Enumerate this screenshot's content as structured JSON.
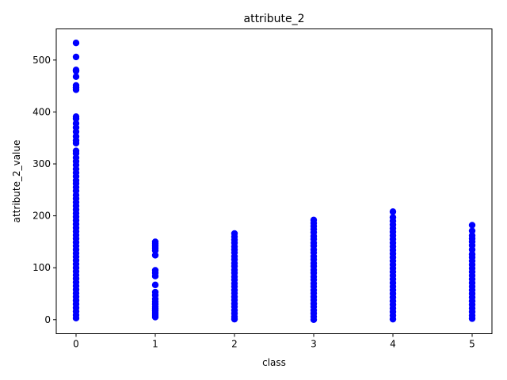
{
  "chart_data": {
    "type": "scatter",
    "title": "attribute_2",
    "xlabel": "class",
    "ylabel": "attribute_2_value",
    "xlim": [
      -0.25,
      5.25
    ],
    "ylim": [
      -27,
      560
    ],
    "xticks": [
      0,
      1,
      2,
      3,
      4,
      5
    ],
    "yticks": [
      0,
      100,
      200,
      300,
      400,
      500
    ],
    "grid": false,
    "legend": "none",
    "marker_color": "#0000ff",
    "series": [
      {
        "points": [
          {
            "x": 0,
            "y": 533
          },
          {
            "x": 0,
            "y": 506
          },
          {
            "x": 0,
            "y": 481
          },
          {
            "x": 0,
            "y": 479
          },
          {
            "x": 0,
            "y": 468
          },
          {
            "x": 0,
            "y": 451
          },
          {
            "x": 0,
            "y": 447
          },
          {
            "x": 0,
            "y": 443
          },
          {
            "x": 0,
            "y": 391
          },
          {
            "x": 0,
            "y": 387
          },
          {
            "x": 0,
            "y": 378
          },
          {
            "x": 0,
            "y": 370
          },
          {
            "x": 0,
            "y": 362
          },
          {
            "x": 0,
            "y": 353
          },
          {
            "x": 0,
            "y": 345
          },
          {
            "x": 0,
            "y": 340
          },
          {
            "x": 0,
            "y": 325
          },
          {
            "x": 0,
            "y": 320
          },
          {
            "x": 0,
            "y": 312
          },
          {
            "x": 0,
            "y": 305
          },
          {
            "x": 0,
            "y": 298
          },
          {
            "x": 0,
            "y": 290
          },
          {
            "x": 0,
            "y": 283
          },
          {
            "x": 0,
            "y": 276
          },
          {
            "x": 0,
            "y": 268
          },
          {
            "x": 0,
            "y": 262
          },
          {
            "x": 0,
            "y": 255
          },
          {
            "x": 0,
            "y": 248
          },
          {
            "x": 0,
            "y": 240
          },
          {
            "x": 0,
            "y": 233
          },
          {
            "x": 0,
            "y": 226
          },
          {
            "x": 0,
            "y": 219
          },
          {
            "x": 0,
            "y": 212
          },
          {
            "x": 0,
            "y": 205
          },
          {
            "x": 0,
            "y": 198
          },
          {
            "x": 0,
            "y": 191
          },
          {
            "x": 0,
            "y": 184
          },
          {
            "x": 0,
            "y": 177
          },
          {
            "x": 0,
            "y": 170
          },
          {
            "x": 0,
            "y": 163
          },
          {
            "x": 0,
            "y": 156
          },
          {
            "x": 0,
            "y": 149
          },
          {
            "x": 0,
            "y": 142
          },
          {
            "x": 0,
            "y": 135
          },
          {
            "x": 0,
            "y": 128
          },
          {
            "x": 0,
            "y": 121
          },
          {
            "x": 0,
            "y": 114
          },
          {
            "x": 0,
            "y": 107
          },
          {
            "x": 0,
            "y": 100
          },
          {
            "x": 0,
            "y": 93
          },
          {
            "x": 0,
            "y": 86
          },
          {
            "x": 0,
            "y": 79
          },
          {
            "x": 0,
            "y": 72
          },
          {
            "x": 0,
            "y": 65
          },
          {
            "x": 0,
            "y": 58
          },
          {
            "x": 0,
            "y": 51
          },
          {
            "x": 0,
            "y": 44
          },
          {
            "x": 0,
            "y": 37
          },
          {
            "x": 0,
            "y": 30
          },
          {
            "x": 0,
            "y": 23
          },
          {
            "x": 0,
            "y": 16
          },
          {
            "x": 0,
            "y": 9
          },
          {
            "x": 0,
            "y": 3
          },
          {
            "x": 1,
            "y": 150
          },
          {
            "x": 1,
            "y": 146
          },
          {
            "x": 1,
            "y": 142
          },
          {
            "x": 1,
            "y": 138
          },
          {
            "x": 1,
            "y": 133
          },
          {
            "x": 1,
            "y": 124
          },
          {
            "x": 1,
            "y": 95
          },
          {
            "x": 1,
            "y": 90
          },
          {
            "x": 1,
            "y": 84
          },
          {
            "x": 1,
            "y": 67
          },
          {
            "x": 1,
            "y": 53
          },
          {
            "x": 1,
            "y": 47
          },
          {
            "x": 1,
            "y": 40
          },
          {
            "x": 1,
            "y": 35
          },
          {
            "x": 1,
            "y": 30
          },
          {
            "x": 1,
            "y": 25
          },
          {
            "x": 1,
            "y": 21
          },
          {
            "x": 1,
            "y": 17
          },
          {
            "x": 1,
            "y": 13
          },
          {
            "x": 1,
            "y": 9
          },
          {
            "x": 1,
            "y": 5
          },
          {
            "x": 2,
            "y": 166
          },
          {
            "x": 2,
            "y": 160
          },
          {
            "x": 2,
            "y": 154
          },
          {
            "x": 2,
            "y": 148
          },
          {
            "x": 2,
            "y": 141
          },
          {
            "x": 2,
            "y": 135
          },
          {
            "x": 2,
            "y": 129
          },
          {
            "x": 2,
            "y": 122
          },
          {
            "x": 2,
            "y": 116
          },
          {
            "x": 2,
            "y": 109
          },
          {
            "x": 2,
            "y": 103
          },
          {
            "x": 2,
            "y": 96
          },
          {
            "x": 2,
            "y": 90
          },
          {
            "x": 2,
            "y": 83
          },
          {
            "x": 2,
            "y": 77
          },
          {
            "x": 2,
            "y": 70
          },
          {
            "x": 2,
            "y": 64
          },
          {
            "x": 2,
            "y": 57
          },
          {
            "x": 2,
            "y": 51
          },
          {
            "x": 2,
            "y": 44
          },
          {
            "x": 2,
            "y": 38
          },
          {
            "x": 2,
            "y": 31
          },
          {
            "x": 2,
            "y": 25
          },
          {
            "x": 2,
            "y": 18
          },
          {
            "x": 2,
            "y": 12
          },
          {
            "x": 2,
            "y": 6
          },
          {
            "x": 2,
            "y": 1
          },
          {
            "x": 3,
            "y": 192
          },
          {
            "x": 3,
            "y": 186
          },
          {
            "x": 3,
            "y": 180
          },
          {
            "x": 3,
            "y": 174
          },
          {
            "x": 3,
            "y": 168
          },
          {
            "x": 3,
            "y": 161
          },
          {
            "x": 3,
            "y": 155
          },
          {
            "x": 3,
            "y": 148
          },
          {
            "x": 3,
            "y": 142
          },
          {
            "x": 3,
            "y": 135
          },
          {
            "x": 3,
            "y": 129
          },
          {
            "x": 3,
            "y": 122
          },
          {
            "x": 3,
            "y": 116
          },
          {
            "x": 3,
            "y": 109
          },
          {
            "x": 3,
            "y": 103
          },
          {
            "x": 3,
            "y": 96
          },
          {
            "x": 3,
            "y": 90
          },
          {
            "x": 3,
            "y": 83
          },
          {
            "x": 3,
            "y": 77
          },
          {
            "x": 3,
            "y": 70
          },
          {
            "x": 3,
            "y": 64
          },
          {
            "x": 3,
            "y": 57
          },
          {
            "x": 3,
            "y": 51
          },
          {
            "x": 3,
            "y": 44
          },
          {
            "x": 3,
            "y": 38
          },
          {
            "x": 3,
            "y": 31
          },
          {
            "x": 3,
            "y": 25
          },
          {
            "x": 3,
            "y": 18
          },
          {
            "x": 3,
            "y": 12
          },
          {
            "x": 3,
            "y": 6
          },
          {
            "x": 3,
            "y": 0
          },
          {
            "x": 4,
            "y": 208
          },
          {
            "x": 4,
            "y": 197
          },
          {
            "x": 4,
            "y": 190
          },
          {
            "x": 4,
            "y": 183
          },
          {
            "x": 4,
            "y": 176
          },
          {
            "x": 4,
            "y": 169
          },
          {
            "x": 4,
            "y": 162
          },
          {
            "x": 4,
            "y": 155
          },
          {
            "x": 4,
            "y": 148
          },
          {
            "x": 4,
            "y": 141
          },
          {
            "x": 4,
            "y": 134
          },
          {
            "x": 4,
            "y": 127
          },
          {
            "x": 4,
            "y": 120
          },
          {
            "x": 4,
            "y": 113
          },
          {
            "x": 4,
            "y": 106
          },
          {
            "x": 4,
            "y": 99
          },
          {
            "x": 4,
            "y": 92
          },
          {
            "x": 4,
            "y": 85
          },
          {
            "x": 4,
            "y": 78
          },
          {
            "x": 4,
            "y": 71
          },
          {
            "x": 4,
            "y": 64
          },
          {
            "x": 4,
            "y": 57
          },
          {
            "x": 4,
            "y": 50
          },
          {
            "x": 4,
            "y": 43
          },
          {
            "x": 4,
            "y": 36
          },
          {
            "x": 4,
            "y": 29
          },
          {
            "x": 4,
            "y": 22
          },
          {
            "x": 4,
            "y": 15
          },
          {
            "x": 4,
            "y": 8
          },
          {
            "x": 4,
            "y": 1
          },
          {
            "x": 5,
            "y": 182
          },
          {
            "x": 5,
            "y": 171
          },
          {
            "x": 5,
            "y": 162
          },
          {
            "x": 5,
            "y": 156
          },
          {
            "x": 5,
            "y": 150
          },
          {
            "x": 5,
            "y": 143
          },
          {
            "x": 5,
            "y": 135
          },
          {
            "x": 5,
            "y": 126
          },
          {
            "x": 5,
            "y": 120
          },
          {
            "x": 5,
            "y": 113
          },
          {
            "x": 5,
            "y": 106
          },
          {
            "x": 5,
            "y": 99
          },
          {
            "x": 5,
            "y": 92
          },
          {
            "x": 5,
            "y": 85
          },
          {
            "x": 5,
            "y": 78
          },
          {
            "x": 5,
            "y": 71
          },
          {
            "x": 5,
            "y": 64
          },
          {
            "x": 5,
            "y": 57
          },
          {
            "x": 5,
            "y": 50
          },
          {
            "x": 5,
            "y": 43
          },
          {
            "x": 5,
            "y": 36
          },
          {
            "x": 5,
            "y": 29
          },
          {
            "x": 5,
            "y": 22
          },
          {
            "x": 5,
            "y": 15
          },
          {
            "x": 5,
            "y": 8
          },
          {
            "x": 5,
            "y": 2
          }
        ]
      }
    ]
  }
}
